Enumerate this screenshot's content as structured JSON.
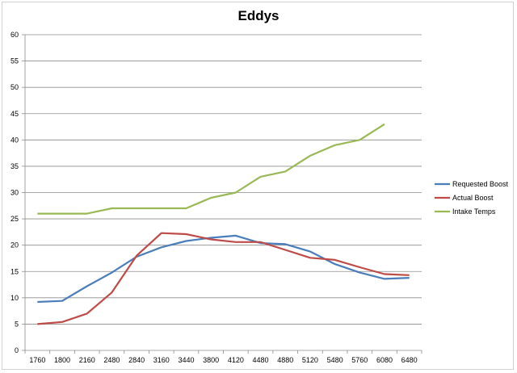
{
  "chart_data": {
    "type": "line",
    "title": "Eddys",
    "xlabel": "",
    "ylabel": "",
    "categories": [
      "1760",
      "1800",
      "2160",
      "2480",
      "2840",
      "3160",
      "3440",
      "3800",
      "4120",
      "4480",
      "4880",
      "5120",
      "5480",
      "5760",
      "6080",
      "6480"
    ],
    "ylim": [
      0,
      60
    ],
    "yticks": [
      0,
      5,
      10,
      15,
      20,
      25,
      30,
      35,
      40,
      45,
      50,
      55,
      60
    ],
    "grid": true,
    "legend_position": "right",
    "series": [
      {
        "name": "Requested Boost",
        "color": "#4A7EBB",
        "values": [
          9.2,
          9.4,
          12.2,
          14.8,
          17.8,
          19.6,
          20.8,
          21.4,
          21.8,
          20.4,
          20.2,
          18.8,
          16.4,
          14.8,
          13.6,
          13.8
        ]
      },
      {
        "name": "Actual Boost",
        "color": "#BE4B48",
        "values": [
          5.0,
          5.4,
          7.0,
          11.0,
          18.0,
          22.3,
          22.1,
          21.1,
          20.6,
          20.6,
          19.1,
          17.6,
          17.2,
          15.8,
          14.5,
          14.3
        ]
      },
      {
        "name": "Intake Temps",
        "color": "#98B954",
        "values": [
          26,
          26,
          26,
          27,
          27,
          27,
          27,
          29,
          30,
          33,
          34,
          37,
          39,
          40,
          43,
          null
        ]
      }
    ]
  }
}
